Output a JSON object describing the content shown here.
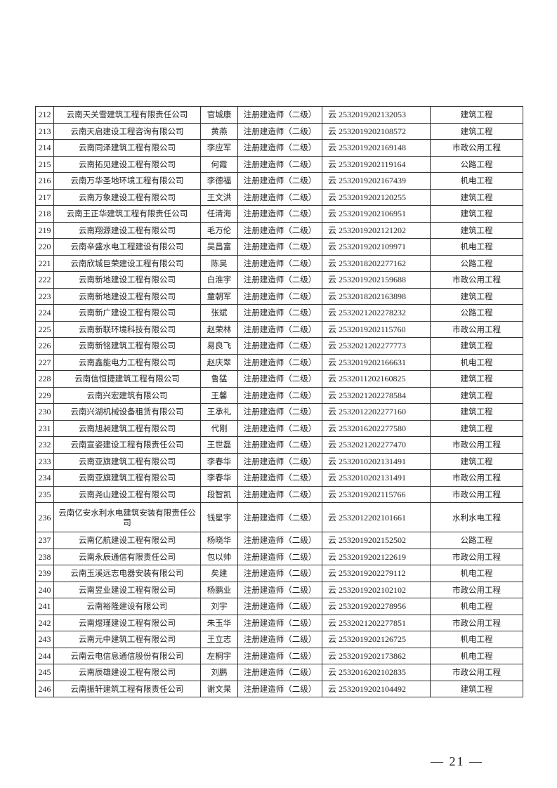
{
  "rows": [
    [
      "212",
      "云南天关雪建筑工程有限责任公司",
      "官城康",
      "注册建造师（二级）",
      "云 2532019202132053",
      "建筑工程"
    ],
    [
      "213",
      "云南天启建设工程咨询有限公司",
      "黄燕",
      "注册建造师（二级）",
      "云 2532019202108572",
      "建筑工程"
    ],
    [
      "214",
      "云南同泽建筑工程有限公司",
      "李应军",
      "注册建造师（二级）",
      "云 2532019202169148",
      "市政公用工程"
    ],
    [
      "215",
      "云南拓见建设工程有限公司",
      "何霞",
      "注册建造师（二级）",
      "云 2532019202119164",
      "公路工程"
    ],
    [
      "216",
      "云南万华圣地环境工程有限公司",
      "李德福",
      "注册建造师（二级）",
      "云 2532019202167439",
      "机电工程"
    ],
    [
      "217",
      "云南万象建设工程有限公司",
      "王文洪",
      "注册建造师（二级）",
      "云 2532019202120255",
      "建筑工程"
    ],
    [
      "218",
      "云南王正华建筑工程有限责任公司",
      "任清海",
      "注册建造师（二级）",
      "云 2532019202106951",
      "建筑工程"
    ],
    [
      "219",
      "云南翔源建设工程有限公司",
      "毛万伦",
      "注册建造师（二级）",
      "云 2532019202121202",
      "建筑工程"
    ],
    [
      "220",
      "云南辛盛水电工程建设有限公司",
      "吴昌富",
      "注册建造师（二级）",
      "云 2532019202109971",
      "机电工程"
    ],
    [
      "221",
      "云南欣城巨荣建设工程有限公司",
      "陈昊",
      "注册建造师（二级）",
      "云 2532018202277162",
      "公路工程"
    ],
    [
      "222",
      "云南新地建设工程有限公司",
      "白淮宇",
      "注册建造师（二级）",
      "云 2532019202159688",
      "市政公用工程"
    ],
    [
      "223",
      "云南新地建设工程有限公司",
      "童朝军",
      "注册建造师（二级）",
      "云 2532018202163898",
      "建筑工程"
    ],
    [
      "224",
      "云南新广建设工程有限公司",
      "张斌",
      "注册建造师（二级）",
      "云 2532021202278232",
      "公路工程"
    ],
    [
      "225",
      "云南新联环境科技有限公司",
      "赵荣林",
      "注册建造师（二级）",
      "云 2532019202115760",
      "市政公用工程"
    ],
    [
      "226",
      "云南新铭建筑工程有限公司",
      "易良飞",
      "注册建造师（二级）",
      "云 2532021202277773",
      "建筑工程"
    ],
    [
      "227",
      "云南鑫能电力工程有限公司",
      "赵庆翠",
      "注册建造师（二级）",
      "云 2532019202166631",
      "机电工程"
    ],
    [
      "228",
      "云南信恒捷建筑工程有限公司",
      "鲁猛",
      "注册建造师（二级）",
      "云 2532011202160825",
      "建筑工程"
    ],
    [
      "229",
      "云南兴宏建筑有限公司",
      "王馨",
      "注册建造师（二级）",
      "云 2532021202278584",
      "建筑工程"
    ],
    [
      "230",
      "云南兴湖机械设备租赁有限公司",
      "王承礼",
      "注册建造师（二级）",
      "云 2532012202277160",
      "建筑工程"
    ],
    [
      "231",
      "云南旭昶建筑工程有限公司",
      "代刚",
      "注册建造师（二级）",
      "云 2532016202277580",
      "建筑工程"
    ],
    [
      "232",
      "云南宣姿建设工程有限责任公司",
      "王世磊",
      "注册建造师（二级）",
      "云 2532021202277470",
      "市政公用工程"
    ],
    [
      "233",
      "云南亚旗建筑工程有限公司",
      "李春华",
      "注册建造师（二级）",
      "云 2532010202131491",
      "建筑工程"
    ],
    [
      "234",
      "云南亚旗建筑工程有限公司",
      "李春华",
      "注册建造师（二级）",
      "云 2532010202131491",
      "市政公用工程"
    ],
    [
      "235",
      "云南尧山建设工程有限公司",
      "段智凯",
      "注册建造师（二级）",
      "云 2532019202115766",
      "市政公用工程"
    ],
    [
      "236",
      "云南亿安水利水电建筑安装有限责任公司",
      "钱星宇",
      "注册建造师（二级）",
      "云 2532012202101661",
      "水利水电工程"
    ],
    [
      "237",
      "云南亿航建设工程有限公司",
      "杨晓华",
      "注册建造师（二级）",
      "云 2532019202152502",
      "公路工程"
    ],
    [
      "238",
      "云南永辰通信有限责任公司",
      "包以帅",
      "注册建造师（二级）",
      "云 2532019202122619",
      "市政公用工程"
    ],
    [
      "239",
      "云南玉溪远志电器安装有限公司",
      "矣建",
      "注册建造师（二级）",
      "云 2532019202279112",
      "机电工程"
    ],
    [
      "240",
      "云南昱业建设工程有限公司",
      "杨鹏业",
      "注册建造师（二级）",
      "云 2532019202102102",
      "市政公用工程"
    ],
    [
      "241",
      "云南裕隆建设有限公司",
      "刘宇",
      "注册建造师（二级）",
      "云 2532019202278956",
      "机电工程"
    ],
    [
      "242",
      "云南煜瑾建设工程有限公司",
      "朱玉华",
      "注册建造师（二级）",
      "云 2532021202277851",
      "市政公用工程"
    ],
    [
      "243",
      "云南元中建筑工程有限公司",
      "王立志",
      "注册建造师（二级）",
      "云 2532019202126725",
      "机电工程"
    ],
    [
      "244",
      "云南云电信息通信股份有限公司",
      "左桐宇",
      "注册建造师（二级）",
      "云 2532019202173862",
      "机电工程"
    ],
    [
      "245",
      "云南辰雄建设工程有限公司",
      "刘鹏",
      "注册建造师（二级）",
      "云 2532016202102835",
      "市政公用工程"
    ],
    [
      "246",
      "云南振轩建筑工程有限责任公司",
      "谢文杲",
      "注册建造师（二级）",
      "云 2532019202104492",
      "建筑工程"
    ]
  ],
  "page_number": "— 21 —"
}
